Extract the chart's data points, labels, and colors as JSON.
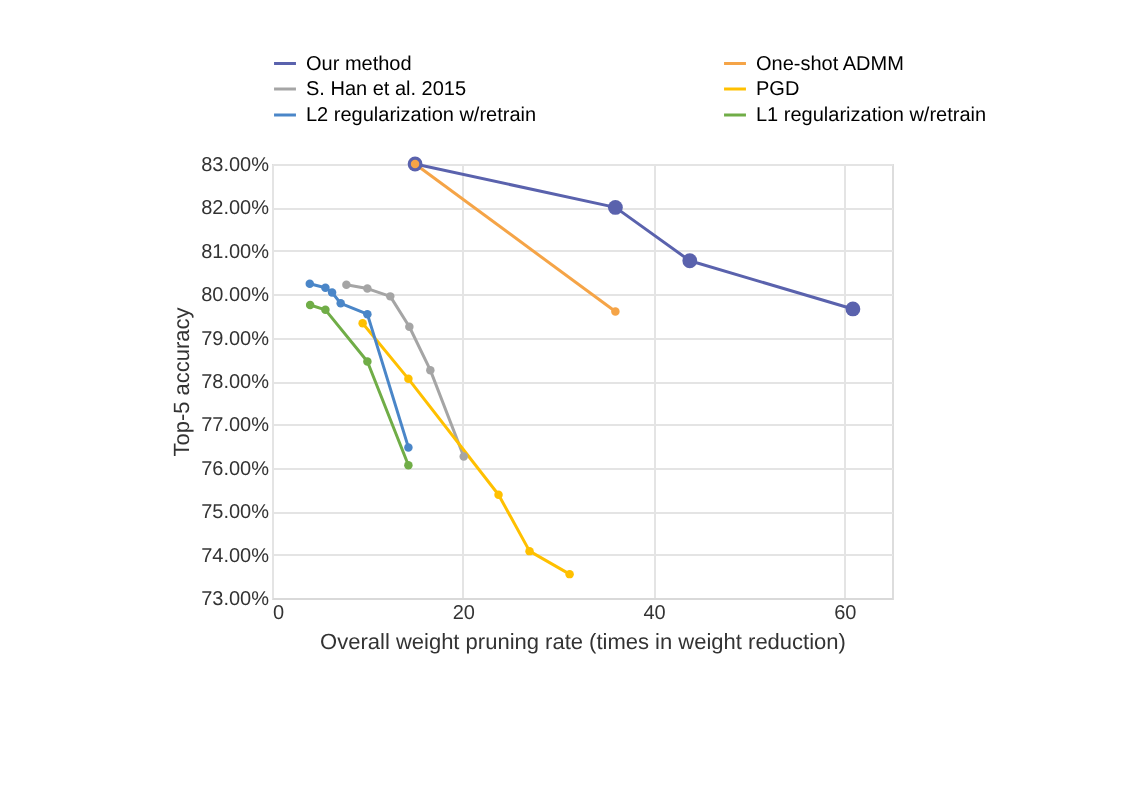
{
  "chart_data": {
    "type": "line",
    "xlabel": "Overall weight pruning rate (times in weight reduction)",
    "ylabel": "Top-5 accuracy",
    "series": [
      {
        "name": "Our method",
        "color": "#5a62ad",
        "x": [
          15,
          36,
          43.8,
          60.9
        ],
        "values": [
          83.0,
          82.0,
          80.77,
          79.66
        ]
      },
      {
        "name": "One-shot ADMM",
        "color": "#f5a447",
        "x": [
          15,
          36
        ],
        "values": [
          83.0,
          79.6
        ]
      },
      {
        "name": "S. Han et al. 2015",
        "color": "#a5a5a5",
        "x": [
          7.8,
          10,
          12.4,
          14.4,
          16.6,
          20.1
        ],
        "values": [
          80.22,
          80.13,
          79.95,
          79.25,
          78.25,
          76.26
        ]
      },
      {
        "name": "PGD",
        "color": "#ffc000",
        "x": [
          9.5,
          14.3,
          23.75,
          27.0,
          31.2
        ],
        "values": [
          79.33,
          78.05,
          75.38,
          74.08,
          73.55
        ]
      },
      {
        "name": "L2 regularization w/retrain",
        "color": "#4a86c8",
        "x": [
          3.96,
          5.6,
          6.3,
          7.2,
          10,
          14.3
        ],
        "values": [
          80.24,
          80.15,
          80.04,
          79.79,
          79.54,
          76.47
        ]
      },
      {
        "name": "L1 regularization w/retrain",
        "color": "#70ad47",
        "x": [
          4.0,
          5.6,
          10,
          14.3
        ],
        "values": [
          79.75,
          79.64,
          78.45,
          76.06
        ]
      }
    ],
    "xlim": [
      0,
      65
    ],
    "xticks": [
      0,
      20,
      40,
      60
    ],
    "ylim": [
      73,
      83
    ],
    "yticks": [
      {
        "value": 73,
        "label": "73.00%"
      },
      {
        "value": 74,
        "label": "74.00%"
      },
      {
        "value": 75,
        "label": "75.00%"
      },
      {
        "value": 76,
        "label": "76.00%"
      },
      {
        "value": 77,
        "label": "77.00%"
      },
      {
        "value": 78,
        "label": "78.00%"
      },
      {
        "value": 79,
        "label": "79.00%"
      },
      {
        "value": 80,
        "label": "80.00%"
      },
      {
        "value": 81,
        "label": "81.00%"
      },
      {
        "value": 82,
        "label": "82.00%"
      },
      {
        "value": 83,
        "label": "83.00%"
      }
    ],
    "grid": true,
    "legend": "top",
    "marker": "circle",
    "line_style": "solid"
  }
}
